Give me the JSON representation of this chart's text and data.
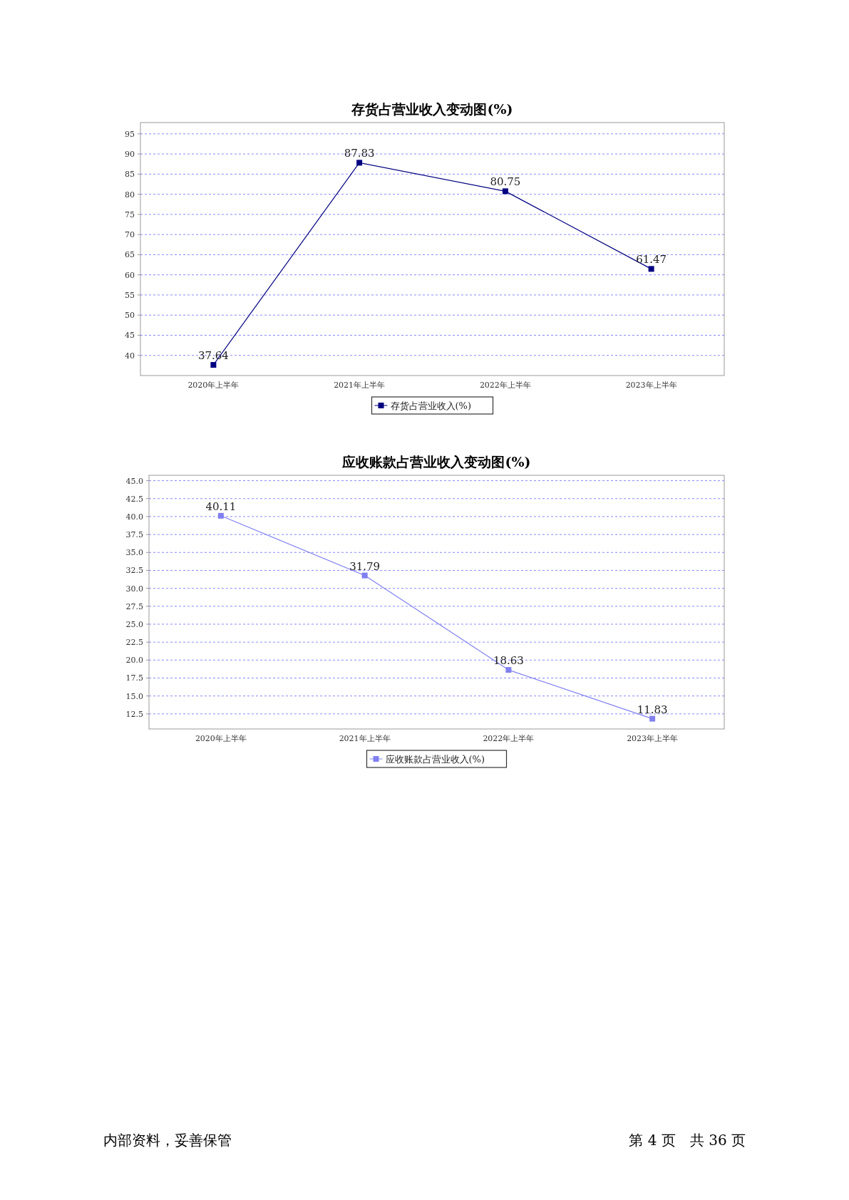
{
  "chart_data": [
    {
      "type": "line",
      "title": "存货占营业收入变动图(%)",
      "categories": [
        "2020年上半年",
        "2021年上半年",
        "2022年上半年",
        "2023年上半年"
      ],
      "series": [
        {
          "name": "存货占营业收入(%)",
          "color": "#000080",
          "values": [
            37.64,
            87.83,
            80.75,
            61.47
          ]
        }
      ],
      "ylim": [
        35,
        97.8
      ],
      "yticks": [
        40,
        45,
        50,
        55,
        60,
        65,
        70,
        75,
        80,
        85,
        90,
        95
      ],
      "grid": "y",
      "legend": "bottom",
      "marker": "square",
      "line_style": "solid",
      "data_labels": true
    },
    {
      "type": "line",
      "title": "应收账款占营业收入变动图(%)",
      "categories": [
        "2020年上半年",
        "2021年上半年",
        "2022年上半年",
        "2023年上半年"
      ],
      "series": [
        {
          "name": "应收账款占营业收入(%)",
          "color": "#8080f0",
          "values": [
            40.11,
            31.79,
            18.63,
            11.83
          ]
        }
      ],
      "ylim": [
        10.4,
        45.75
      ],
      "yticks": [
        {
          "value": 12.5,
          "label": "12.5"
        },
        {
          "value": 15,
          "label": "15.0"
        },
        {
          "value": 17.5,
          "label": "17.5"
        },
        {
          "value": 20,
          "label": "20.0"
        },
        {
          "value": 22.5,
          "label": "22.5"
        },
        {
          "value": 25,
          "label": "25.0"
        },
        {
          "value": 27.5,
          "label": "27.5"
        },
        {
          "value": 30,
          "label": "30.0"
        },
        {
          "value": 32.5,
          "label": "32.5"
        },
        {
          "value": 35,
          "label": "35.0"
        },
        {
          "value": 37.5,
          "label": "37.5"
        },
        {
          "value": 40,
          "label": "40.0"
        },
        {
          "value": 42.5,
          "label": "42.5"
        },
        {
          "value": 45,
          "label": "45.0"
        }
      ],
      "grid": "y",
      "legend": "bottom",
      "marker": "square",
      "line_style": "solid",
      "data_labels": true,
      "annotations": [
        "内部资料，妥善保管",
        "第 4 页　共 36 页"
      ]
    }
  ]
}
